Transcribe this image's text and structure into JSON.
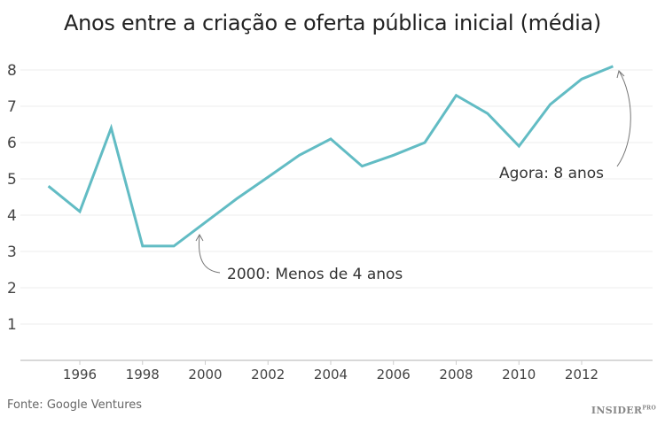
{
  "chart_data": {
    "type": "line",
    "title": "Anos entre a criação e oferta pública inicial (média)",
    "xlabel": "",
    "ylabel": "",
    "x": [
      1995,
      1996,
      1997,
      1998,
      1999,
      2000,
      2001,
      2002,
      2003,
      2004,
      2005,
      2006,
      2007,
      2008,
      2009,
      2010,
      2011,
      2012,
      2013
    ],
    "values": [
      4.8,
      4.1,
      6.4,
      3.15,
      3.15,
      3.8,
      4.45,
      5.05,
      5.65,
      6.1,
      5.35,
      5.65,
      6.0,
      7.3,
      6.8,
      5.9,
      7.05,
      7.75,
      8.1
    ],
    "x_ticks": [
      "1996",
      "1998",
      "2000",
      "2002",
      "2004",
      "2006",
      "2008",
      "2010",
      "2012"
    ],
    "y_ticks": [
      "1",
      "2",
      "3",
      "4",
      "5",
      "6",
      "7",
      "8"
    ],
    "xlim": [
      1994,
      2014
    ],
    "ylim": [
      0,
      8
    ],
    "grid": "horizontal",
    "line_color": "#62BCC4",
    "annotations": [
      {
        "text": "2000: Menos de 4 anos",
        "x": 1999.8,
        "y": 3.5
      },
      {
        "text": "Agora: 8 anos",
        "x": 2013,
        "y": 8.1
      }
    ]
  },
  "footer": {
    "source": "Fonte: Google Ventures",
    "logo": "INSIDER",
    "logo_sup": "PRO"
  }
}
